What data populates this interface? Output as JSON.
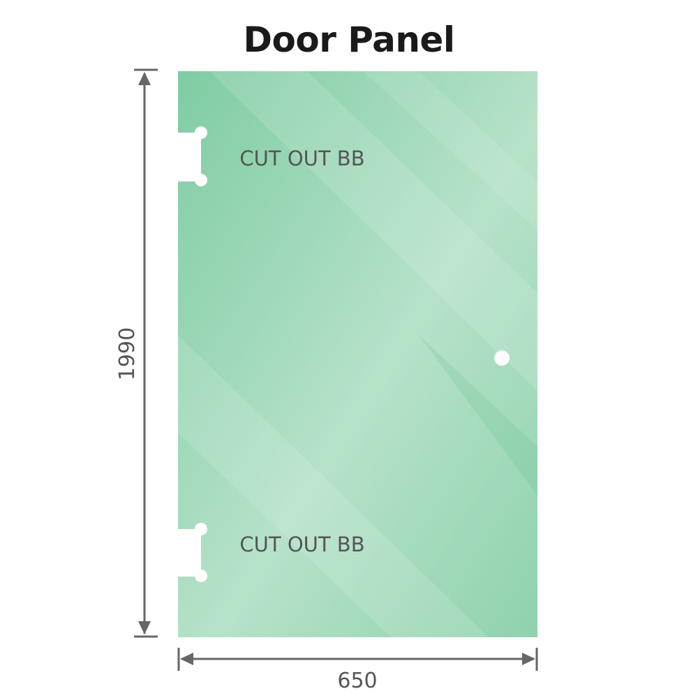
{
  "title": "Door Panel",
  "panel": {
    "glass_color": "#86cfa8",
    "cutouts": [
      {
        "label": "CUT OUT BB",
        "position": "top"
      },
      {
        "label": "CUT OUT BB",
        "position": "bottom"
      }
    ],
    "handle_hole": true
  },
  "dimensions": {
    "height": "1990",
    "width": "650",
    "line_color": "#666666"
  }
}
